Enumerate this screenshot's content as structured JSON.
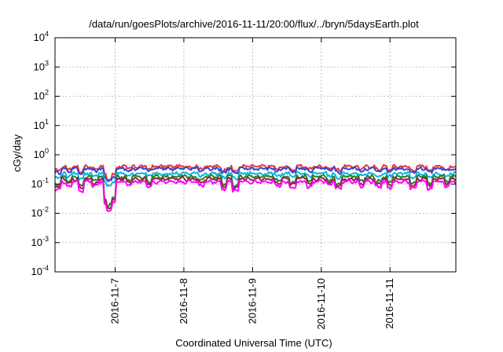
{
  "chart_data": {
    "type": "line",
    "title": "/data/run/goesPlots/archive/2016-11-11/20:00/flux/../bryn/5daysEarth.plot",
    "xlabel": "Coordinated Universal Time (UTC)",
    "ylabel": "cGy/day",
    "yscale": "log",
    "ylim": [
      0.0001,
      10000
    ],
    "y_ticks": [
      {
        "value": 0.0001,
        "base": "10",
        "exp": "-4"
      },
      {
        "value": 0.001,
        "base": "10",
        "exp": "-3"
      },
      {
        "value": 0.01,
        "base": "10",
        "exp": "-2"
      },
      {
        "value": 0.1,
        "base": "10",
        "exp": "-1"
      },
      {
        "value": 1,
        "base": "10",
        "exp": "0"
      },
      {
        "value": 10,
        "base": "10",
        "exp": "1"
      },
      {
        "value": 100,
        "base": "10",
        "exp": "2"
      },
      {
        "value": 1000,
        "base": "10",
        "exp": "3"
      },
      {
        "value": 10000,
        "base": "10",
        "exp": "4"
      }
    ],
    "xlim": [
      "2016-11-06T03:00",
      "2016-11-11T23:00"
    ],
    "x_ticks": [
      {
        "value": "2016-11-07T00:00",
        "label": "2016-11-7"
      },
      {
        "value": "2016-11-08T00:00",
        "label": "2016-11-8"
      },
      {
        "value": "2016-11-09T00:00",
        "label": "2016-11-9"
      },
      {
        "value": "2016-11-10T00:00",
        "label": "2016-11-10"
      },
      {
        "value": "2016-11-11T00:00",
        "label": "2016-11-11"
      }
    ],
    "grid": true,
    "legend": "none",
    "series": [
      {
        "color": "#e53935",
        "level": 0.4
      },
      {
        "color": "#3f3fd6",
        "level": 0.34
      },
      {
        "color": "#00bcd4",
        "level": 0.23
      },
      {
        "color": "#2e7d32",
        "level": 0.18
      },
      {
        "color": "#8b2a3a",
        "level": 0.15
      },
      {
        "color": "#ff00ff",
        "level": 0.12
      }
    ],
    "dips": [
      {
        "x": "2016-11-06T04:00",
        "factor": 0.55
      },
      {
        "x": "2016-11-06T08:00",
        "factor": 0.7
      },
      {
        "x": "2016-11-06T12:00",
        "factor": 0.5
      },
      {
        "x": "2016-11-06T17:00",
        "factor": 0.75
      },
      {
        "x": "2016-11-06T22:00",
        "factor": 0.55
      },
      {
        "x": "2016-11-06T21:00",
        "factor": 0.18
      },
      {
        "x": "2016-11-06T23:00",
        "factor": 0.2
      },
      {
        "x": "2016-11-07T05:00",
        "factor": 0.75
      },
      {
        "x": "2016-11-07T12:00",
        "factor": 0.7
      },
      {
        "x": "2016-11-08T06:00",
        "factor": 0.75
      },
      {
        "x": "2016-11-08T14:00",
        "factor": 0.55
      },
      {
        "x": "2016-11-08T18:00",
        "factor": 0.5
      },
      {
        "x": "2016-11-09T09:00",
        "factor": 0.75
      },
      {
        "x": "2016-11-09T14:00",
        "factor": 0.65
      },
      {
        "x": "2016-11-09T20:00",
        "factor": 0.7
      },
      {
        "x": "2016-11-10T03:00",
        "factor": 0.75
      },
      {
        "x": "2016-11-10T06:00",
        "factor": 0.6
      },
      {
        "x": "2016-11-10T14:00",
        "factor": 0.7
      },
      {
        "x": "2016-11-10T20:00",
        "factor": 0.7
      },
      {
        "x": "2016-11-11T00:00",
        "factor": 0.65
      },
      {
        "x": "2016-11-11T08:00",
        "factor": 0.6
      },
      {
        "x": "2016-11-11T14:00",
        "factor": 0.6
      },
      {
        "x": "2016-11-11T20:00",
        "factor": 0.7
      }
    ]
  }
}
